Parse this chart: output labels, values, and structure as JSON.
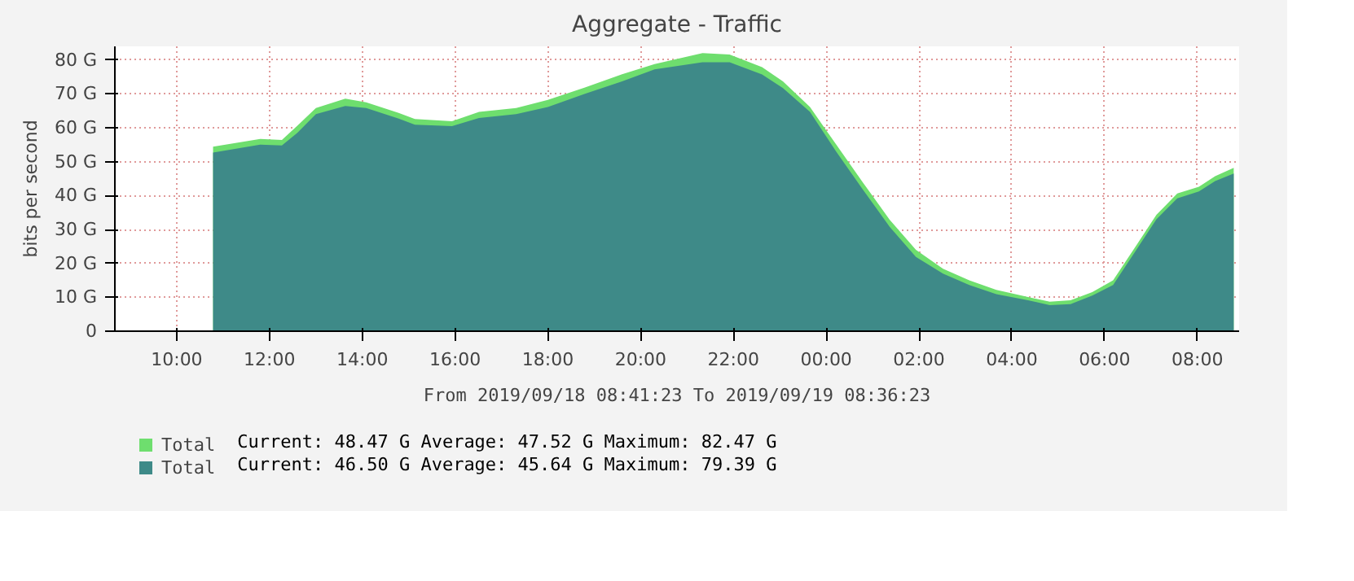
{
  "chart_data": {
    "type": "area",
    "title": "Aggregate - Traffic",
    "xlabel": "From 2019/09/18 08:41:23 To 2019/09/19 08:36:23",
    "ylabel": "bits per second",
    "x": [
      "2019-09-18T10:47",
      "2019-09-18T11:48",
      "2019-09-18T12:16",
      "2019-09-18T12:36",
      "2019-09-18T13:00",
      "2019-09-18T13:38",
      "2019-09-18T14:05",
      "2019-09-18T14:47",
      "2019-09-18T15:08",
      "2019-09-18T15:56",
      "2019-09-18T16:31",
      "2019-09-18T17:19",
      "2019-09-18T18:00",
      "2019-09-18T18:48",
      "2019-09-18T19:36",
      "2019-09-18T20:18",
      "2019-09-18T21:20",
      "2019-09-18T21:55",
      "2019-09-18T22:37",
      "2019-09-18T23:04",
      "2019-09-18T23:39",
      "2019-09-19T00:13",
      "2019-09-19T00:47",
      "2019-09-19T01:22",
      "2019-09-19T01:56",
      "2019-09-19T02:31",
      "2019-09-19T03:05",
      "2019-09-19T03:40",
      "2019-09-19T04:21",
      "2019-09-19T04:49",
      "2019-09-19T05:16",
      "2019-09-19T05:44",
      "2019-09-19T06:11",
      "2019-09-19T06:39",
      "2019-09-19T07:07",
      "2019-09-19T07:34",
      "2019-09-19T08:02",
      "2019-09-19T08:23",
      "2019-09-19T08:47"
    ],
    "series": [
      {
        "name": "Total",
        "color": "#6ede6e",
        "values": [
          54.4,
          56.7,
          56.4,
          60.6,
          65.8,
          68.6,
          67.5,
          64.4,
          62.6,
          61.9,
          64.7,
          65.8,
          68.2,
          71.9,
          75.8,
          78.8,
          82.0,
          81.6,
          77.9,
          73.7,
          66.1,
          55.0,
          44.0,
          32.9,
          24.0,
          18.4,
          15.0,
          12.2,
          10.1,
          8.7,
          9.1,
          11.5,
          15.0,
          24.6,
          34.3,
          40.6,
          42.6,
          45.7,
          48.2
        ]
      },
      {
        "name": "Total",
        "color": "#3e8a88",
        "values": [
          52.7,
          55.0,
          54.8,
          58.5,
          64.0,
          66.4,
          65.8,
          62.7,
          60.9,
          60.5,
          62.9,
          64.0,
          66.1,
          70.0,
          73.7,
          77.2,
          79.3,
          79.3,
          75.7,
          71.7,
          64.7,
          52.9,
          41.9,
          30.8,
          21.9,
          17.0,
          13.6,
          10.9,
          9.1,
          7.7,
          8.0,
          10.5,
          13.6,
          23.3,
          33.0,
          39.2,
          41.2,
          44.3,
          46.5
        ]
      }
    ],
    "annotations": [
      "Current:   48.47 G  Average:   47.52 G  Maximum:   82.47 G",
      "Current:   46.50 G  Average:   45.64 G  Maximum:   79.39 G"
    ],
    "xlim": [
      "2019-09-18T08:40",
      "2019-09-19T08:54"
    ],
    "xticks": [
      {
        "value": "2019-09-18T10:00",
        "label": "10:00"
      },
      {
        "value": "2019-09-18T12:00",
        "label": "12:00"
      },
      {
        "value": "2019-09-18T14:00",
        "label": "14:00"
      },
      {
        "value": "2019-09-18T16:00",
        "label": "16:00"
      },
      {
        "value": "2019-09-18T18:00",
        "label": "18:00"
      },
      {
        "value": "2019-09-18T20:00",
        "label": "20:00"
      },
      {
        "value": "2019-09-18T22:00",
        "label": "22:00"
      },
      {
        "value": "2019-09-19T00:00",
        "label": "00:00"
      },
      {
        "value": "2019-09-19T02:00",
        "label": "02:00"
      },
      {
        "value": "2019-09-19T04:00",
        "label": "04:00"
      },
      {
        "value": "2019-09-19T06:00",
        "label": "06:00"
      },
      {
        "value": "2019-09-19T08:00",
        "label": "08:00"
      }
    ],
    "ylim": [
      0,
      84
    ],
    "yticks": [
      0,
      {
        "value": 10,
        "label": "10 G"
      },
      {
        "value": 20,
        "label": "20 G"
      },
      {
        "value": 30,
        "label": "30 G"
      },
      {
        "value": 40,
        "label": "40 G"
      },
      {
        "value": 50,
        "label": "50 G"
      },
      {
        "value": 60,
        "label": "60 G"
      },
      {
        "value": 70,
        "label": "70 G"
      },
      {
        "value": 80,
        "label": "80 G"
      }
    ],
    "grid": true,
    "legend": "bottom"
  }
}
